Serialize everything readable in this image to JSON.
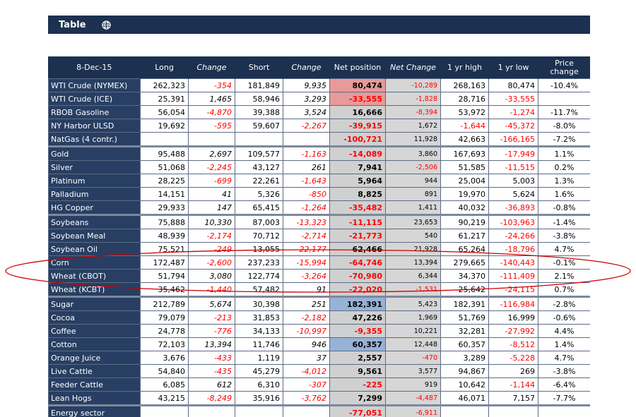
{
  "header": {
    "title": "Table",
    "icon": "globe-icon"
  },
  "table": {
    "columns": [
      "8-Dec-15",
      "Long",
      "Change",
      "Short",
      "Change",
      "Net position",
      "Net Change",
      "1 yr high",
      "1 yr low",
      "Price change"
    ],
    "rows": [
      {
        "name": "WTI Crude (NYMEX)",
        "long": "262,323",
        "change1": "-354",
        "short": "181,849",
        "change2": "9,935",
        "net": "80,474",
        "netchg": "-10,289",
        "high": "268,163",
        "low": "80,474",
        "price": "-10.4%",
        "hl": "red"
      },
      {
        "name": "WTI Crude (ICE)",
        "long": "25,391",
        "change1": "1,465",
        "short": "58,946",
        "change2": "3,293",
        "net": "-33,555",
        "netchg": "-1,828",
        "high": "28,716",
        "low": "-33,555",
        "price": "",
        "hl": "red"
      },
      {
        "name": "RBOB Gasoline",
        "long": "56,054",
        "change1": "-4,870",
        "short": "39,388",
        "change2": "3,524",
        "net": "16,666",
        "netchg": "-8,394",
        "high": "53,972",
        "low": "-1,274",
        "price": "-11.7%"
      },
      {
        "name": "NY Harbor ULSD",
        "long": "19,692",
        "change1": "-595",
        "short": "59,607",
        "change2": "-2,267",
        "net": "-39,915",
        "netchg": "1,672",
        "high": "-1,644",
        "low": "-45,372",
        "price": "-8.0%"
      },
      {
        "name": "NatGas (4 contr.)",
        "long": "",
        "change1": "",
        "short": "",
        "change2": "",
        "net": "-100,721",
        "netchg": "11,928",
        "high": "42,663",
        "low": "-166,165",
        "price": "-7.2%"
      },
      {
        "name": "Gold",
        "long": "95,488",
        "change1": "2,697",
        "short": "109,577",
        "change2": "-1,163",
        "net": "-14,089",
        "netchg": "3,860",
        "high": "167,693",
        "low": "-17,949",
        "price": "1.1%",
        "gap": true
      },
      {
        "name": "Silver",
        "long": "51,068",
        "change1": "-2,245",
        "short": "43,127",
        "change2": "261",
        "net": "7,941",
        "netchg": "-2,506",
        "high": "51,585",
        "low": "-11,515",
        "price": "0.2%"
      },
      {
        "name": "Platinum",
        "long": "28,225",
        "change1": "-699",
        "short": "22,261",
        "change2": "-1,643",
        "net": "5,964",
        "netchg": "944",
        "high": "25,004",
        "low": "5,003",
        "price": "1.3%"
      },
      {
        "name": "Palladium",
        "long": "14,151",
        "change1": "41",
        "short": "5,326",
        "change2": "-850",
        "net": "8,825",
        "netchg": "891",
        "high": "19,970",
        "low": "5,624",
        "price": "1.6%"
      },
      {
        "name": "HG Copper",
        "long": "29,933",
        "change1": "147",
        "short": "65,415",
        "change2": "-1,264",
        "net": "-35,482",
        "netchg": "1,411",
        "high": "40,032",
        "low": "-36,893",
        "price": "-0.8%"
      },
      {
        "name": "Soybeans",
        "long": "75,888",
        "change1": "10,330",
        "short": "87,003",
        "change2": "-13,323",
        "net": "-11,115",
        "netchg": "23,653",
        "high": "90,219",
        "low": "-103,963",
        "price": "-1.4%",
        "gap": true
      },
      {
        "name": "Soybean Meal",
        "long": "48,939",
        "change1": "-2,174",
        "short": "70,712",
        "change2": "-2,714",
        "net": "-21,773",
        "netchg": "540",
        "high": "61,217",
        "low": "-24,266",
        "price": "-3.8%"
      },
      {
        "name": "Soybean Oil",
        "long": "75,521",
        "change1": "-249",
        "short": "13,055",
        "change2": "-22,177",
        "net": "62,466",
        "netchg": "21,928",
        "high": "65,264",
        "low": "-18,796",
        "price": "4.7%"
      },
      {
        "name": "Corn",
        "long": "172,487",
        "change1": "-2,600",
        "short": "237,233",
        "change2": "-15,994",
        "net": "-64,746",
        "netchg": "13,394",
        "high": "279,665",
        "low": "-140,443",
        "price": "-0.1%"
      },
      {
        "name": "Wheat (CBOT)",
        "long": "51,794",
        "change1": "3,080",
        "short": "122,774",
        "change2": "-3,264",
        "net": "-70,980",
        "netchg": "6,344",
        "high": "34,370",
        "low": "-111,409",
        "price": "2.1%"
      },
      {
        "name": "Wheat (KCBT)",
        "long": "35,462",
        "change1": "-1,440",
        "short": "57,482",
        "change2": "91",
        "net": "-22,020",
        "netchg": "-1,531",
        "high": "25,642",
        "low": "-24,115",
        "price": "0.7%"
      },
      {
        "name": "Sugar",
        "long": "212,789",
        "change1": "5,674",
        "short": "30,398",
        "change2": "251",
        "net": "182,391",
        "netchg": "5,423",
        "high": "182,391",
        "low": "-116,984",
        "price": "-2.8%",
        "gap": true,
        "hl": "blue"
      },
      {
        "name": "Cocoa",
        "long": "79,079",
        "change1": "-213",
        "short": "31,853",
        "change2": "-2,182",
        "net": "47,226",
        "netchg": "1,969",
        "high": "51,769",
        "low": "16,999",
        "price": "-0.6%"
      },
      {
        "name": "Coffee",
        "long": "24,778",
        "change1": "-776",
        "short": "34,133",
        "change2": "-10,997",
        "net": "-9,355",
        "netchg": "10,221",
        "high": "32,281",
        "low": "-27,992",
        "price": "4.4%"
      },
      {
        "name": "Cotton",
        "long": "72,103",
        "change1": "13,394",
        "short": "11,746",
        "change2": "946",
        "net": "60,357",
        "netchg": "12,448",
        "high": "60,357",
        "low": "-8,512",
        "price": "1.4%",
        "hl": "blue"
      },
      {
        "name": "Orange Juice",
        "long": "3,676",
        "change1": "-433",
        "short": "1,119",
        "change2": "37",
        "net": "2,557",
        "netchg": "-470",
        "high": "3,289",
        "low": "-5,228",
        "price": "4.7%"
      },
      {
        "name": "Live Cattle",
        "long": "54,840",
        "change1": "-435",
        "short": "45,279",
        "change2": "-4,012",
        "net": "9,561",
        "netchg": "3,577",
        "high": "94,867",
        "low": "269",
        "price": "-3.8%"
      },
      {
        "name": "Feeder Cattle",
        "long": "6,085",
        "change1": "612",
        "short": "6,310",
        "change2": "-307",
        "net": "-225",
        "netchg": "919",
        "high": "10,642",
        "low": "-1,144",
        "price": "-6.4%"
      },
      {
        "name": "Lean Hogs",
        "long": "43,215",
        "change1": "-8,249",
        "short": "35,916",
        "change2": "-3,762",
        "net": "7,299",
        "netchg": "-4,487",
        "high": "46,071",
        "low": "7,157",
        "price": "-7.7%"
      },
      {
        "name": "Energy sector",
        "long": "",
        "change1": "",
        "short": "",
        "change2": "",
        "net": "-77,051",
        "netchg": "-6,911",
        "high": "",
        "low": "",
        "price": "",
        "gap": true
      }
    ]
  },
  "colors": {
    "navy": "#1c3150",
    "row_label": "#283f63",
    "negative": "#ff0000",
    "highlight_red": "#e79a9a",
    "highlight_blue": "#97b2d7",
    "ellipse": "#cc0000"
  }
}
